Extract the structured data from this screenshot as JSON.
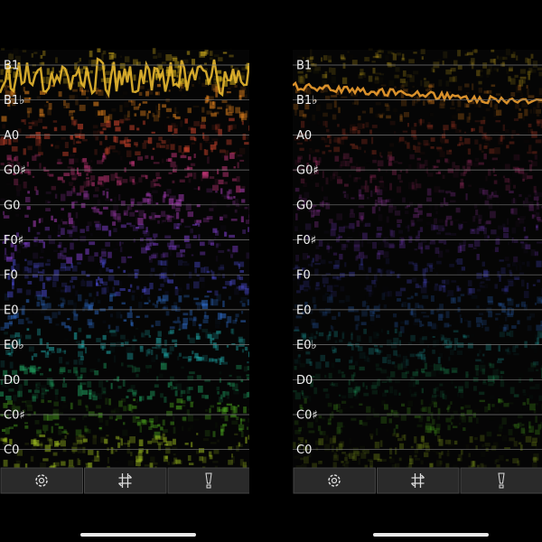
{
  "panels": [
    {
      "notes": [
        "B1",
        "B1♭",
        "A0",
        "G0♯",
        "G0",
        "F0♯",
        "F0",
        "E0",
        "E0♭",
        "D0",
        "C0♯",
        "C0"
      ]
    },
    {
      "notes": [
        "B1",
        "B1♭",
        "A0",
        "G0♯",
        "G0",
        "F0♯",
        "F0",
        "E0",
        "E0♭",
        "D0",
        "C0♯",
        "C0"
      ]
    }
  ]
}
